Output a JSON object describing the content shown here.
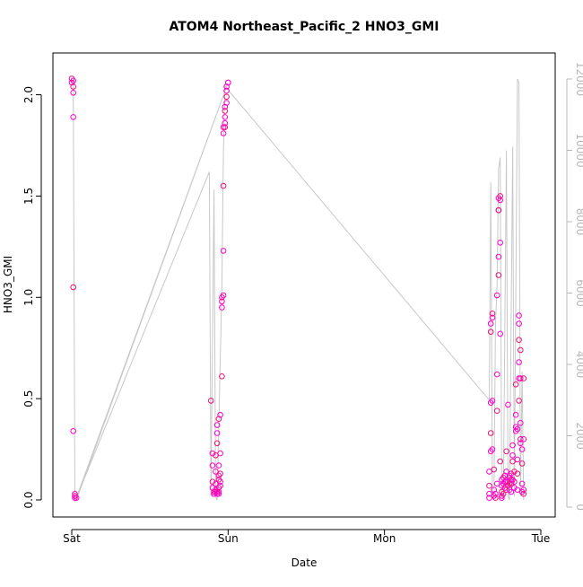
{
  "chart_data": {
    "type": "scatter",
    "title": "ATOM4 Northeast_Pacific_2 HNO3_GMI",
    "xlabel": "Date",
    "ylabel": "HNO3_GMI",
    "x_categories": [
      "Sat",
      "Sun",
      "Mon",
      "Tue"
    ],
    "ylim": [
      0,
      2.1
    ],
    "y_ticks": [
      "0.0",
      "0.5",
      "1.0",
      "1.5",
      "2.0"
    ],
    "y2lim": [
      0,
      12000
    ],
    "y2_ticks": [
      "0",
      "2000",
      "4000",
      "6000",
      "8000",
      "10000",
      "12000"
    ],
    "colors": {
      "points": "#ff00cc",
      "points_alt": "#ee1177",
      "line": "#c8c8c8",
      "right_axis": "#b8b8b8"
    },
    "series": [
      {
        "marker": "circle",
        "axis": "left",
        "points": [
          [
            0.0,
            2.08
          ],
          [
            0.0,
            2.06
          ],
          [
            0.01,
            2.07
          ],
          [
            0.01,
            2.04
          ],
          [
            0.01,
            2.01
          ],
          [
            0.01,
            1.89
          ],
          [
            0.01,
            1.05
          ],
          [
            0.01,
            0.34
          ],
          [
            0.02,
            0.03
          ],
          [
            0.02,
            0.02
          ],
          [
            0.03,
            0.01
          ],
          [
            0.02,
            0.01
          ],
          [
            0.89,
            0.49
          ],
          [
            0.9,
            0.23
          ],
          [
            0.9,
            0.17
          ],
          [
            0.9,
            0.09
          ],
          [
            0.9,
            0.06
          ],
          [
            0.91,
            0.04
          ],
          [
            0.91,
            0.03
          ],
          [
            0.91,
            0.03
          ],
          [
            0.92,
            0.08
          ],
          [
            0.92,
            0.22
          ],
          [
            0.92,
            0.14
          ],
          [
            0.92,
            0.05
          ],
          [
            0.92,
            0.04
          ],
          [
            0.93,
            0.04
          ],
          [
            0.93,
            0.03
          ],
          [
            0.93,
            0.28
          ],
          [
            0.93,
            0.33
          ],
          [
            0.93,
            0.37
          ],
          [
            0.94,
            0.4
          ],
          [
            0.94,
            0.17
          ],
          [
            0.94,
            0.12
          ],
          [
            0.94,
            0.1
          ],
          [
            0.94,
            0.04
          ],
          [
            0.94,
            0.03
          ],
          [
            0.94,
            0.06
          ],
          [
            0.95,
            0.07
          ],
          [
            0.95,
            0.09
          ],
          [
            0.95,
            0.13
          ],
          [
            0.95,
            0.23
          ],
          [
            0.95,
            0.42
          ],
          [
            0.96,
            0.61
          ],
          [
            0.96,
            0.95
          ],
          [
            0.96,
            0.98
          ],
          [
            0.96,
            1.0
          ],
          [
            0.97,
            1.01
          ],
          [
            0.97,
            1.23
          ],
          [
            0.97,
            1.55
          ],
          [
            0.97,
            1.81
          ],
          [
            0.97,
            1.84
          ],
          [
            0.98,
            1.84
          ],
          [
            0.98,
            1.86
          ],
          [
            0.98,
            1.89
          ],
          [
            0.98,
            1.92
          ],
          [
            0.98,
            1.94
          ],
          [
            0.99,
            1.96
          ],
          [
            0.99,
            1.99
          ],
          [
            0.99,
            2.02
          ],
          [
            0.99,
            2.04
          ],
          [
            1.0,
            2.06
          ],
          [
            1.0,
            2.06
          ],
          [
            2.67,
            0.14
          ],
          [
            2.67,
            0.07
          ],
          [
            2.67,
            0.03
          ],
          [
            2.67,
            0.01
          ],
          [
            2.68,
            0.33
          ],
          [
            2.68,
            0.24
          ],
          [
            2.68,
            0.48
          ],
          [
            2.68,
            0.83
          ],
          [
            2.68,
            0.87
          ],
          [
            2.69,
            0.9
          ],
          [
            2.69,
            0.92
          ],
          [
            2.69,
            0.49
          ],
          [
            2.69,
            0.25
          ],
          [
            2.7,
            0.15
          ],
          [
            2.7,
            0.05
          ],
          [
            2.7,
            0.02
          ],
          [
            2.71,
            0.01
          ],
          [
            2.71,
            0.03
          ],
          [
            2.72,
            0.08
          ],
          [
            2.72,
            0.44
          ],
          [
            2.72,
            0.62
          ],
          [
            2.72,
            1.01
          ],
          [
            2.73,
            1.11
          ],
          [
            2.73,
            1.2
          ],
          [
            2.73,
            1.43
          ],
          [
            2.73,
            1.43
          ],
          [
            2.73,
            1.49
          ],
          [
            2.74,
            1.48
          ],
          [
            2.74,
            1.5
          ],
          [
            2.74,
            1.27
          ],
          [
            2.74,
            0.82
          ],
          [
            2.74,
            0.19
          ],
          [
            2.75,
            0.1
          ],
          [
            2.75,
            0.07
          ],
          [
            2.75,
            0.04
          ],
          [
            2.75,
            0.02
          ],
          [
            2.75,
            0.01
          ],
          [
            2.76,
            0.03
          ],
          [
            2.76,
            0.08
          ],
          [
            2.76,
            0.11
          ],
          [
            2.77,
            0.12
          ],
          [
            2.77,
            0.09
          ],
          [
            2.77,
            0.06
          ],
          [
            2.78,
            0.05
          ],
          [
            2.78,
            0.09
          ],
          [
            2.78,
            0.14
          ],
          [
            2.78,
            0.24
          ],
          [
            2.79,
            0.47
          ],
          [
            2.79,
            0.09
          ],
          [
            2.79,
            0.07
          ],
          [
            2.8,
            0.11
          ],
          [
            2.8,
            0.12
          ],
          [
            2.8,
            0.08
          ],
          [
            2.8,
            0.05
          ],
          [
            2.81,
            0.04
          ],
          [
            2.81,
            0.08
          ],
          [
            2.81,
            0.1
          ],
          [
            2.81,
            0.13
          ],
          [
            2.82,
            0.19
          ],
          [
            2.82,
            0.27
          ],
          [
            2.82,
            0.22
          ],
          [
            2.82,
            0.1
          ],
          [
            2.83,
            0.06
          ],
          [
            2.83,
            0.09
          ],
          [
            2.83,
            0.14
          ],
          [
            2.84,
            0.34
          ],
          [
            2.84,
            0.42
          ],
          [
            2.84,
            0.57
          ],
          [
            2.84,
            0.36
          ],
          [
            2.85,
            0.2
          ],
          [
            2.85,
            0.13
          ],
          [
            2.85,
            0.05
          ],
          [
            2.85,
            0.35
          ],
          [
            2.86,
            0.49
          ],
          [
            2.86,
            0.6
          ],
          [
            2.86,
            0.68
          ],
          [
            2.86,
            0.79
          ],
          [
            2.86,
            0.87
          ],
          [
            2.86,
            0.91
          ],
          [
            2.87,
            0.74
          ],
          [
            2.87,
            0.6
          ],
          [
            2.87,
            0.38
          ],
          [
            2.87,
            0.3
          ],
          [
            2.87,
            0.28
          ],
          [
            2.88,
            0.25
          ],
          [
            2.88,
            0.18
          ],
          [
            2.88,
            0.08
          ],
          [
            2.88,
            0.04
          ],
          [
            2.89,
            0.03
          ],
          [
            2.89,
            0.05
          ],
          [
            2.89,
            0.3
          ],
          [
            2.89,
            0.6
          ]
        ]
      }
    ],
    "line_series": {
      "axis": "right",
      "points": [
        [
          0.0,
          12000
        ],
        [
          0.01,
          11800
        ],
        [
          0.02,
          300
        ],
        [
          0.03,
          200
        ],
        [
          1.0,
          11900
        ],
        [
          0.02,
          150
        ],
        [
          0.88,
          9400
        ],
        [
          0.89,
          300
        ],
        [
          0.91,
          8900
        ],
        [
          0.92,
          300
        ],
        [
          0.93,
          200
        ],
        [
          0.96,
          6200
        ],
        [
          0.97,
          10000
        ],
        [
          0.98,
          11800
        ],
        [
          2.67,
          3000
        ],
        [
          2.68,
          9100
        ],
        [
          2.69,
          300
        ],
        [
          2.7,
          200
        ],
        [
          2.71,
          5100
        ],
        [
          2.72,
          6200
        ],
        [
          2.73,
          9500
        ],
        [
          2.74,
          9800
        ],
        [
          2.75,
          300
        ],
        [
          2.76,
          200
        ],
        [
          2.78,
          10000
        ],
        [
          2.79,
          300
        ],
        [
          2.8,
          200
        ],
        [
          2.82,
          10100
        ],
        [
          2.83,
          300
        ],
        [
          2.85,
          12000
        ],
        [
          2.86,
          11900
        ],
        [
          2.87,
          300
        ],
        [
          2.88,
          3800
        ],
        [
          2.89,
          200
        ]
      ]
    },
    "grid": false,
    "legend": "none"
  }
}
